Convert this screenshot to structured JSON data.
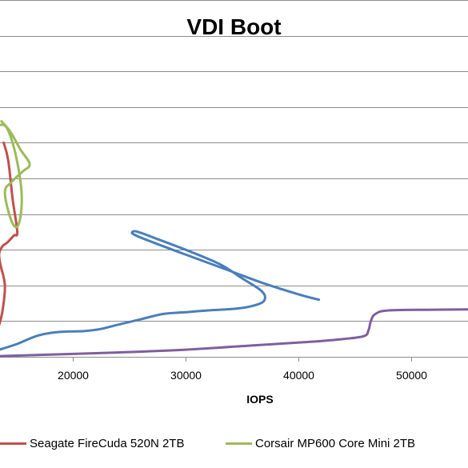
{
  "chart_data": {
    "type": "line",
    "title": "VDI Boot",
    "xlabel": "IOPS",
    "ylabel": "",
    "x_ticks": [
      "20000",
      "30000",
      "40000",
      "50000"
    ],
    "x_tick_values": [
      20000,
      30000,
      40000,
      50000
    ],
    "xlim": [
      13500,
      55000
    ],
    "ylim": [
      0,
      10
    ],
    "grid": true,
    "legend_position": "bottom",
    "series": [
      {
        "name": "",
        "color": "#4a7ebb",
        "x": [
          13500,
          15000,
          17000,
          19000,
          21000,
          22500,
          24000,
          26000,
          28000,
          30000,
          32000,
          34500,
          36200,
          37000,
          36700,
          35000,
          33000,
          30000,
          27500,
          25800,
          25300,
          25600,
          28000,
          31000,
          34000,
          37000,
          40000,
          41800
        ],
        "y": [
          0.2,
          0.35,
          0.6,
          0.7,
          0.72,
          0.78,
          0.9,
          1.05,
          1.2,
          1.25,
          1.3,
          1.35,
          1.45,
          1.6,
          1.85,
          2.2,
          2.6,
          3.0,
          3.3,
          3.5,
          3.5,
          3.4,
          3.1,
          2.75,
          2.4,
          2.05,
          1.75,
          1.6
        ]
      },
      {
        "name": "",
        "color": "#7d5fa0",
        "x": [
          13500,
          18000,
          24000,
          30000,
          36000,
          41000,
          44000,
          45800,
          46200,
          46400,
          46800,
          48000,
          52000,
          55000
        ],
        "y": [
          0.02,
          0.06,
          0.12,
          0.2,
          0.32,
          0.42,
          0.5,
          0.58,
          0.75,
          1.0,
          1.2,
          1.3,
          1.32,
          1.33
        ]
      },
      {
        "name": "Seagate FireCuda 520N 2TB",
        "color": "#c0504d",
        "x": [
          13500,
          13800,
          14000,
          13600,
          13500,
          13800,
          14200,
          14800,
          15100,
          14700,
          14300,
          13900
        ],
        "y": [
          0.9,
          1.3,
          2.0,
          2.6,
          2.9,
          3.1,
          3.2,
          3.4,
          3.5,
          4.4,
          5.5,
          6.0
        ]
      },
      {
        "name": "Corsair MP600 Core Mini 2TB",
        "color": "#9bbb59",
        "x": [
          13500,
          14200,
          15000,
          15500,
          15200,
          14600,
          14000,
          14600,
          15600,
          16200,
          15400,
          14500,
          13700
        ],
        "y": [
          6.5,
          6.4,
          5.6,
          4.5,
          3.7,
          3.8,
          4.6,
          4.9,
          5.2,
          5.4,
          5.8,
          6.3,
          6.6
        ]
      }
    ]
  }
}
